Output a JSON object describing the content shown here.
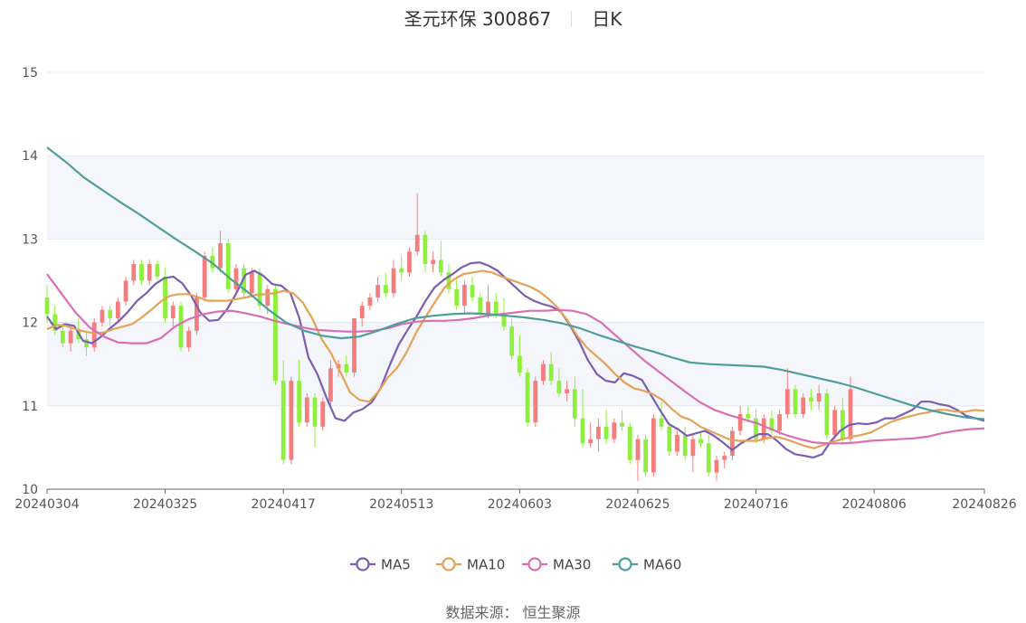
{
  "title": {
    "name": "圣元环保 300867",
    "period": "日K"
  },
  "source": "数据来源： 恒生聚源",
  "colors": {
    "up": "#f47e7e",
    "down": "#8ef03d",
    "ma5": "#7b5eb0",
    "ma10": "#e5a257",
    "ma30": "#d86fb2",
    "ma60": "#4f9e9c",
    "grid": "#e3e7f1",
    "band": "#f5f6fb"
  },
  "chart_data": {
    "type": "candlestick",
    "x_ticks": [
      "20240304",
      "20240325",
      "20240417",
      "20240513",
      "20240603",
      "20240625",
      "20240716",
      "20240806",
      "20240826"
    ],
    "y_ticks": [
      10,
      11,
      12,
      13,
      14,
      15
    ],
    "ylim": [
      10,
      15
    ],
    "n_days": 120,
    "tick_index": [
      0,
      15,
      30,
      45,
      60,
      75,
      90,
      105,
      119
    ],
    "legend": [
      "MA5",
      "MA10",
      "MA30",
      "MA60"
    ],
    "legend_position": "bottom",
    "candles_ohlc_sample": [
      [
        12.3,
        12.45,
        12.0,
        12.1
      ],
      [
        12.1,
        12.2,
        11.85,
        11.9
      ],
      [
        11.9,
        12.0,
        11.7,
        11.75
      ],
      [
        11.75,
        11.95,
        11.65,
        11.9
      ],
      [
        11.9,
        12.05,
        11.75,
        11.8
      ],
      [
        11.8,
        11.9,
        11.6,
        11.7
      ],
      [
        11.7,
        12.05,
        11.65,
        12.0
      ],
      [
        12.0,
        12.2,
        11.95,
        12.15
      ],
      [
        12.15,
        12.2,
        11.95,
        12.05
      ],
      [
        12.05,
        12.3,
        12.0,
        12.25
      ],
      [
        12.25,
        12.55,
        12.2,
        12.5
      ],
      [
        12.5,
        12.75,
        12.45,
        12.7
      ],
      [
        12.7,
        12.75,
        12.45,
        12.5
      ],
      [
        12.5,
        12.75,
        12.45,
        12.7
      ],
      [
        12.7,
        12.75,
        12.5,
        12.55
      ],
      [
        12.55,
        12.65,
        12.0,
        12.05
      ],
      [
        12.05,
        12.25,
        11.95,
        12.2
      ],
      [
        12.2,
        12.25,
        11.65,
        11.7
      ],
      [
        11.7,
        11.95,
        11.65,
        11.9
      ],
      [
        11.9,
        12.35,
        11.85,
        12.3
      ],
      [
        12.3,
        12.85,
        12.25,
        12.8
      ],
      [
        12.8,
        12.9,
        12.6,
        12.65
      ],
      [
        12.65,
        13.1,
        12.6,
        12.95
      ],
      [
        12.95,
        13.0,
        12.35,
        12.4
      ],
      [
        12.4,
        12.7,
        12.35,
        12.65
      ],
      [
        12.65,
        12.7,
        12.3,
        12.35
      ],
      [
        12.35,
        12.65,
        12.3,
        12.6
      ],
      [
        12.6,
        12.65,
        12.15,
        12.2
      ],
      [
        12.2,
        12.45,
        12.1,
        12.4
      ],
      [
        12.4,
        12.45,
        11.25,
        11.3
      ],
      [
        11.3,
        11.55,
        10.3,
        10.35
      ],
      [
        10.35,
        11.35,
        10.3,
        11.3
      ],
      [
        11.3,
        11.55,
        10.75,
        10.8
      ],
      [
        10.8,
        11.15,
        10.75,
        11.1
      ],
      [
        11.1,
        11.15,
        10.5,
        10.75
      ],
      [
        10.75,
        11.1,
        10.7,
        11.05
      ],
      [
        11.05,
        11.55,
        11.0,
        11.45
      ],
      [
        11.45,
        11.55,
        11.35,
        11.5
      ],
      [
        11.5,
        11.6,
        11.35,
        11.4
      ],
      [
        11.4,
        12.05,
        11.35,
        12.05
      ],
      [
        12.05,
        12.25,
        11.95,
        12.2
      ],
      [
        12.2,
        12.35,
        12.15,
        12.3
      ],
      [
        12.3,
        12.55,
        12.25,
        12.45
      ],
      [
        12.45,
        12.6,
        12.3,
        12.35
      ],
      [
        12.35,
        12.75,
        12.3,
        12.65
      ],
      [
        12.65,
        12.8,
        12.5,
        12.6
      ],
      [
        12.6,
        12.9,
        12.55,
        12.85
      ],
      [
        12.85,
        13.55,
        12.8,
        13.05
      ],
      [
        13.05,
        13.1,
        12.6,
        12.7
      ],
      [
        12.7,
        12.85,
        12.6,
        12.75
      ],
      [
        12.75,
        12.98,
        12.55,
        12.6
      ],
      [
        12.6,
        12.7,
        12.35,
        12.4
      ],
      [
        12.4,
        12.55,
        12.15,
        12.2
      ],
      [
        12.2,
        12.5,
        12.1,
        12.45
      ],
      [
        12.45,
        12.55,
        12.25,
        12.3
      ],
      [
        12.3,
        12.35,
        12.05,
        12.1
      ],
      [
        12.1,
        12.45,
        12.05,
        12.25
      ],
      [
        12.25,
        12.35,
        12.05,
        12.1
      ],
      [
        12.1,
        12.3,
        11.9,
        11.95
      ],
      [
        11.95,
        12.05,
        11.55,
        11.6
      ],
      [
        11.6,
        11.85,
        11.35,
        11.4
      ],
      [
        11.4,
        11.45,
        10.75,
        10.8
      ],
      [
        10.8,
        11.35,
        10.75,
        11.3
      ],
      [
        11.3,
        11.55,
        11.25,
        11.5
      ],
      [
        11.5,
        11.65,
        11.25,
        11.3
      ],
      [
        11.3,
        11.45,
        11.1,
        11.15
      ],
      [
        11.15,
        11.3,
        11.05,
        11.2
      ],
      [
        11.2,
        11.35,
        10.75,
        10.85
      ],
      [
        10.85,
        11.2,
        10.5,
        10.55
      ],
      [
        10.55,
        10.8,
        10.5,
        10.6
      ],
      [
        10.6,
        10.85,
        10.45,
        10.75
      ],
      [
        10.75,
        10.95,
        10.55,
        10.6
      ],
      [
        10.6,
        10.85,
        10.55,
        10.8
      ],
      [
        10.8,
        10.95,
        10.7,
        10.75
      ],
      [
        10.75,
        10.8,
        10.3,
        10.35
      ],
      [
        10.35,
        10.65,
        10.1,
        10.6
      ],
      [
        10.6,
        10.65,
        10.15,
        10.2
      ],
      [
        10.2,
        10.9,
        10.15,
        10.85
      ],
      [
        10.85,
        11.05,
        10.7,
        10.75
      ],
      [
        10.75,
        10.8,
        10.4,
        10.45
      ],
      [
        10.45,
        10.7,
        10.4,
        10.65
      ],
      [
        10.65,
        10.75,
        10.35,
        10.4
      ],
      [
        10.4,
        10.65,
        10.2,
        10.6
      ],
      [
        10.6,
        10.7,
        10.5,
        10.55
      ],
      [
        10.55,
        10.65,
        10.15,
        10.2
      ],
      [
        10.2,
        10.4,
        10.1,
        10.35
      ],
      [
        10.35,
        10.45,
        10.25,
        10.4
      ],
      [
        10.4,
        10.75,
        10.35,
        10.7
      ],
      [
        10.7,
        11.0,
        10.65,
        10.9
      ],
      [
        10.9,
        11.0,
        10.8,
        10.85
      ],
      [
        10.85,
        10.95,
        10.55,
        10.6
      ],
      [
        10.6,
        10.9,
        10.55,
        10.85
      ],
      [
        10.85,
        10.95,
        10.65,
        10.7
      ],
      [
        10.7,
        10.95,
        10.65,
        10.9
      ],
      [
        10.9,
        11.45,
        10.85,
        11.2
      ],
      [
        11.2,
        11.25,
        10.85,
        10.9
      ],
      [
        10.9,
        11.15,
        10.85,
        11.1
      ],
      [
        11.1,
        11.2,
        10.95,
        11.05
      ],
      [
        11.05,
        11.25,
        10.95,
        11.15
      ],
      [
        11.15,
        11.2,
        10.6,
        10.65
      ],
      [
        10.65,
        11.0,
        10.6,
        10.95
      ],
      [
        10.95,
        11.1,
        10.55,
        10.6
      ],
      [
        10.6,
        11.35,
        10.55,
        11.2
      ]
    ],
    "series": [
      {
        "name": "MA5",
        "values": [
          12.07,
          11.92,
          11.98,
          11.96,
          11.78,
          11.75,
          11.83,
          11.93,
          12.02,
          12.13,
          12.26,
          12.35,
          12.46,
          12.53,
          12.55,
          12.47,
          12.32,
          12.12,
          12.02,
          12.03,
          12.16,
          12.35,
          12.57,
          12.62,
          12.56,
          12.46,
          12.44,
          12.35,
          12.05,
          11.58,
          11.38,
          11.1,
          10.85,
          10.82,
          10.92,
          10.96,
          11.04,
          11.21,
          11.48,
          11.73,
          11.91,
          12.07,
          12.26,
          12.42,
          12.51,
          12.58,
          12.66,
          12.71,
          12.72,
          12.68,
          12.62,
          12.52,
          12.42,
          12.32,
          12.26,
          12.22,
          12.19,
          12.13,
          11.97,
          11.78,
          11.55,
          11.38,
          11.3,
          11.28,
          11.39,
          11.36,
          11.31,
          11.13,
          10.95,
          10.78,
          10.72,
          10.64,
          10.67,
          10.7,
          10.64,
          10.56,
          10.47,
          10.55,
          10.61,
          10.66,
          10.66,
          10.58,
          10.48,
          10.42,
          10.4,
          10.38,
          10.42,
          10.58,
          10.7,
          10.77,
          10.79,
          10.78,
          10.8,
          10.85,
          10.85,
          10.9,
          10.95,
          11.05,
          11.05,
          11.02,
          11.0,
          10.95,
          10.88,
          10.85,
          10.82
        ]
      },
      {
        "name": "MA10",
        "values": [
          11.92,
          11.97,
          11.96,
          11.92,
          11.89,
          11.87,
          11.88,
          11.92,
          11.95,
          11.98,
          12.06,
          12.15,
          12.25,
          12.32,
          12.34,
          12.34,
          12.3,
          12.26,
          12.26,
          12.26,
          12.28,
          12.3,
          12.33,
          12.34,
          12.35,
          12.38,
          12.35,
          12.24,
          12.05,
          11.8,
          11.63,
          11.4,
          11.16,
          11.07,
          11.05,
          11.17,
          11.34,
          11.46,
          11.65,
          11.88,
          12.07,
          12.25,
          12.42,
          12.52,
          12.58,
          12.6,
          12.62,
          12.6,
          12.55,
          12.51,
          12.47,
          12.43,
          12.37,
          12.28,
          12.17,
          12.02,
          11.84,
          11.7,
          11.6,
          11.5,
          11.38,
          11.28,
          11.21,
          11.18,
          11.14,
          11.07,
          10.96,
          10.87,
          10.83,
          10.75,
          10.7,
          10.65,
          10.6,
          10.58,
          10.58,
          10.58,
          10.61,
          10.63,
          10.6,
          10.56,
          10.52,
          10.49,
          10.53,
          10.57,
          10.6,
          10.63,
          10.65,
          10.68,
          10.74,
          10.8,
          10.84,
          10.87,
          10.9,
          10.92,
          10.95,
          10.95,
          10.93,
          10.93,
          10.95,
          10.94
        ]
      },
      {
        "name": "MA30",
        "values": [
          12.58,
          12.35,
          12.12,
          11.94,
          11.83,
          11.76,
          11.75,
          11.75,
          11.81,
          11.95,
          12.04,
          12.1,
          12.13,
          12.14,
          12.11,
          12.07,
          12.02,
          11.98,
          11.94,
          11.91,
          11.9,
          11.89,
          11.89,
          11.9,
          11.93,
          11.98,
          12.01,
          12.02,
          12.02,
          12.03,
          12.05,
          12.08,
          12.1,
          12.12,
          12.14,
          12.14,
          12.15,
          12.14,
          12.1,
          12.0,
          11.85,
          11.7,
          11.55,
          11.42,
          11.29,
          11.16,
          11.04,
          10.95,
          10.89,
          10.84,
          10.79,
          10.72,
          10.65,
          10.6,
          10.56,
          10.55,
          10.55,
          10.56,
          10.58,
          10.59,
          10.6,
          10.61,
          10.63,
          10.67,
          10.7,
          10.72,
          10.73
        ]
      },
      {
        "name": "MA60",
        "values": [
          14.1,
          13.93,
          13.74,
          13.59,
          13.44,
          13.3,
          13.15,
          13.0,
          12.86,
          12.71,
          12.52,
          12.35,
          12.16,
          12.0,
          11.9,
          11.84,
          11.81,
          11.83,
          11.9,
          11.98,
          12.05,
          12.08,
          12.1,
          12.11,
          12.1,
          12.08,
          12.06,
          12.03,
          11.99,
          11.93,
          11.85,
          11.78,
          11.71,
          11.65,
          11.58,
          11.52,
          11.5,
          11.49,
          11.48,
          11.47,
          11.43,
          11.38,
          11.33,
          11.28,
          11.22,
          11.15,
          11.08,
          11.01,
          10.95,
          10.9,
          10.86,
          10.84
        ]
      }
    ]
  }
}
